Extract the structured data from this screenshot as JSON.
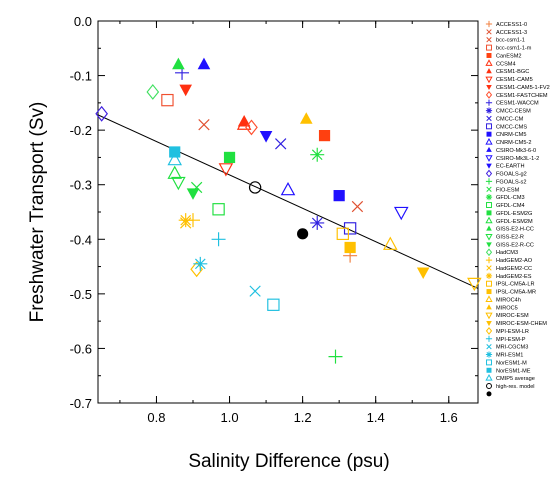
{
  "chart_data": {
    "type": "scatter",
    "title": "",
    "xlabel": "Salinity Difference (psu)",
    "ylabel": "Freshwater Transport (Sv)",
    "xlim": [
      0.64,
      1.68
    ],
    "ylim": [
      -0.7,
      0.0
    ],
    "x_ticks": [
      0.8,
      1.0,
      1.2,
      1.4,
      1.6
    ],
    "y_ticks": [
      0.0,
      -0.1,
      -0.2,
      -0.3,
      -0.4,
      -0.5,
      -0.6,
      -0.7
    ],
    "x_tick_labels": [
      "0.8",
      "1.0",
      "1.2",
      "1.4",
      "1.6"
    ],
    "y_tick_labels": [
      "0.0",
      "-0.1",
      "-0.2",
      "-0.3",
      "-0.4",
      "-0.5",
      "-0.6",
      "-0.7"
    ],
    "grid": false,
    "legend_position": "right",
    "regression_line": {
      "x": [
        0.64,
        1.68
      ],
      "y": [
        -0.172,
        -0.49
      ]
    },
    "series": [
      {
        "name": "ACCESS1-0",
        "marker": "plus",
        "color": "#f08040",
        "points": [
          [
            1.33,
            -0.43
          ]
        ]
      },
      {
        "name": "ACCESS1-3",
        "marker": "x",
        "color": "#e05030",
        "points": [
          [
            1.35,
            -0.34
          ]
        ]
      },
      {
        "name": "bcc-csm1-1",
        "marker": "x",
        "color": "#e05030",
        "points": [
          [
            0.93,
            -0.19
          ]
        ]
      },
      {
        "name": "bcc-csm1-1-m",
        "marker": "square-open",
        "color": "#f05030",
        "points": [
          [
            0.83,
            -0.145
          ]
        ]
      },
      {
        "name": "CanESM2",
        "marker": "square-filled",
        "color": "#ff4010",
        "points": [
          [
            1.26,
            -0.21
          ]
        ]
      },
      {
        "name": "CCSM4",
        "marker": "triangle-up-open",
        "color": "#ff3010",
        "points": [
          [
            1.04,
            -0.19
          ]
        ]
      },
      {
        "name": "CESM1-BGC",
        "marker": "triangle-up-filled",
        "color": "#ff3010",
        "points": [
          [
            1.04,
            -0.185
          ]
        ]
      },
      {
        "name": "CESM1-CAM5",
        "marker": "triangle-down-open",
        "color": "#ff3010",
        "points": [
          [
            0.99,
            -0.27
          ]
        ]
      },
      {
        "name": "CESM1-CAM5-1-FV2",
        "marker": "triangle-down-filled",
        "color": "#ff3010",
        "points": [
          [
            0.88,
            -0.125
          ]
        ]
      },
      {
        "name": "CESM1-FASTCHEM",
        "marker": "diamond-open",
        "color": "#ff5030",
        "points": [
          [
            1.06,
            -0.195
          ]
        ]
      },
      {
        "name": "CESM1-WACCM",
        "marker": "plus",
        "color": "#3020e0",
        "points": [
          [
            0.87,
            -0.095
          ]
        ]
      },
      {
        "name": "CMCC-CESM",
        "marker": "asterisk",
        "color": "#3020e0",
        "points": [
          [
            1.24,
            -0.37
          ]
        ]
      },
      {
        "name": "CMCC-CM",
        "marker": "x",
        "color": "#3020e0",
        "points": [
          [
            1.14,
            -0.225
          ]
        ]
      },
      {
        "name": "CMCC-CMS",
        "marker": "square-open",
        "color": "#3020e0",
        "points": [
          [
            1.33,
            -0.38
          ]
        ]
      },
      {
        "name": "CNRM-CM5",
        "marker": "square-filled",
        "color": "#2010ff",
        "points": [
          [
            1.3,
            -0.32
          ]
        ]
      },
      {
        "name": "CNRM-CM5-2",
        "marker": "triangle-up-open",
        "color": "#2010ff",
        "points": [
          [
            1.16,
            -0.31
          ]
        ]
      },
      {
        "name": "CSIRO-Mk3-6-0",
        "marker": "triangle-up-filled",
        "color": "#2010ff",
        "points": [
          [
            0.93,
            -0.08
          ]
        ]
      },
      {
        "name": "CSIRO-Mk3L-1-2",
        "marker": "triangle-down-open",
        "color": "#2010ff",
        "points": [
          [
            1.47,
            -0.35
          ]
        ]
      },
      {
        "name": "EC-EARTH",
        "marker": "triangle-down-filled",
        "color": "#2010ff",
        "points": [
          [
            1.1,
            -0.21
          ]
        ]
      },
      {
        "name": "FGOALS-g2",
        "marker": "diamond-open",
        "color": "#4020e0",
        "points": [
          [
            0.65,
            -0.17
          ]
        ]
      },
      {
        "name": "FGOALS-s2",
        "marker": "plus",
        "color": "#20e040",
        "points": [
          [
            1.29,
            -0.615
          ]
        ]
      },
      {
        "name": "FIO-ESM",
        "marker": "x",
        "color": "#20e040",
        "points": [
          [
            0.91,
            -0.305
          ]
        ]
      },
      {
        "name": "GFDL-CM3",
        "marker": "asterisk",
        "color": "#20e040",
        "points": [
          [
            1.24,
            -0.245
          ]
        ]
      },
      {
        "name": "GFDL-CM4",
        "marker": "square-open",
        "color": "#20e040",
        "points": [
          [
            0.97,
            -0.345
          ]
        ]
      },
      {
        "name": "GFDL-ESM2G",
        "marker": "square-filled",
        "color": "#20e040",
        "points": [
          [
            1.0,
            -0.25
          ]
        ]
      },
      {
        "name": "GFDL-ESM2M",
        "marker": "triangle-up-open",
        "color": "#20e040",
        "points": [
          [
            0.85,
            -0.28
          ]
        ]
      },
      {
        "name": "GISS-E2-H-CC",
        "marker": "triangle-up-filled",
        "color": "#20e040",
        "points": [
          [
            0.86,
            -0.08
          ]
        ]
      },
      {
        "name": "GISS-E2-R",
        "marker": "triangle-down-open",
        "color": "#20e040",
        "points": [
          [
            0.86,
            -0.295
          ]
        ]
      },
      {
        "name": "GISS-E2-R-CC",
        "marker": "triangle-down-filled",
        "color": "#20e040",
        "points": [
          [
            0.9,
            -0.315
          ]
        ]
      },
      {
        "name": "HadCM3",
        "marker": "diamond-open",
        "color": "#40e060",
        "points": [
          [
            0.79,
            -0.13
          ]
        ]
      },
      {
        "name": "HadGEM2-AO",
        "marker": "plus",
        "color": "#ffc000",
        "points": [
          [
            0.9,
            -0.365
          ]
        ]
      },
      {
        "name": "HadGEM2-CC",
        "marker": "x",
        "color": "#ffc000",
        "points": [
          [
            0.88,
            -0.37
          ]
        ]
      },
      {
        "name": "HadGEM2-ES",
        "marker": "asterisk",
        "color": "#ffc000",
        "points": [
          [
            0.88,
            -0.365
          ]
        ]
      },
      {
        "name": "IPSL-CM5A-LR",
        "marker": "square-open",
        "color": "#ffc000",
        "points": [
          [
            1.31,
            -0.39
          ]
        ]
      },
      {
        "name": "IPSL-CM5A-MR",
        "marker": "square-filled",
        "color": "#ffc000",
        "points": [
          [
            1.33,
            -0.415
          ]
        ]
      },
      {
        "name": "MIROC4h",
        "marker": "triangle-up-open",
        "color": "#ffc000",
        "points": [
          [
            1.44,
            -0.41
          ]
        ]
      },
      {
        "name": "MIROC5",
        "marker": "triangle-up-filled",
        "color": "#ffc000",
        "points": [
          [
            1.21,
            -0.18
          ]
        ]
      },
      {
        "name": "MIROC-ESM",
        "marker": "triangle-down-open",
        "color": "#ffc000",
        "points": [
          [
            1.67,
            -0.48
          ]
        ]
      },
      {
        "name": "MIROC-ESM-CHEM",
        "marker": "triangle-down-filled",
        "color": "#ffc000",
        "points": [
          [
            1.53,
            -0.46
          ]
        ]
      },
      {
        "name": "MPI-ESM-LR",
        "marker": "diamond-open",
        "color": "#ffc000",
        "points": [
          [
            0.91,
            -0.455
          ]
        ]
      },
      {
        "name": "MPI-ESM-P",
        "marker": "plus",
        "color": "#20c0e0",
        "points": [
          [
            0.97,
            -0.4
          ]
        ]
      },
      {
        "name": "MRI-CGCM3",
        "marker": "x",
        "color": "#20c0e0",
        "points": [
          [
            1.07,
            -0.495
          ]
        ]
      },
      {
        "name": "MRI-ESM1",
        "marker": "asterisk",
        "color": "#20c0e0",
        "points": [
          [
            0.92,
            -0.445
          ]
        ]
      },
      {
        "name": "NorESM1-M",
        "marker": "square-open",
        "color": "#20c0e0",
        "points": [
          [
            1.12,
            -0.52
          ]
        ]
      },
      {
        "name": "NorESM1-ME",
        "marker": "square-filled",
        "color": "#20c0e0",
        "points": [
          [
            0.85,
            -0.24
          ]
        ]
      },
      {
        "name": "CMIP5 average",
        "marker": "triangle-up-open",
        "color": "#20c0e0",
        "points": [
          [
            0.85,
            -0.255
          ]
        ]
      },
      {
        "name": "high-res. model",
        "marker": "circle-open",
        "color": "#000000",
        "points": [
          [
            1.07,
            -0.305
          ]
        ]
      },
      {
        "name": "",
        "marker": "circle-filled",
        "color": "#000000",
        "points": [
          [
            1.2,
            -0.39
          ]
        ]
      }
    ]
  }
}
